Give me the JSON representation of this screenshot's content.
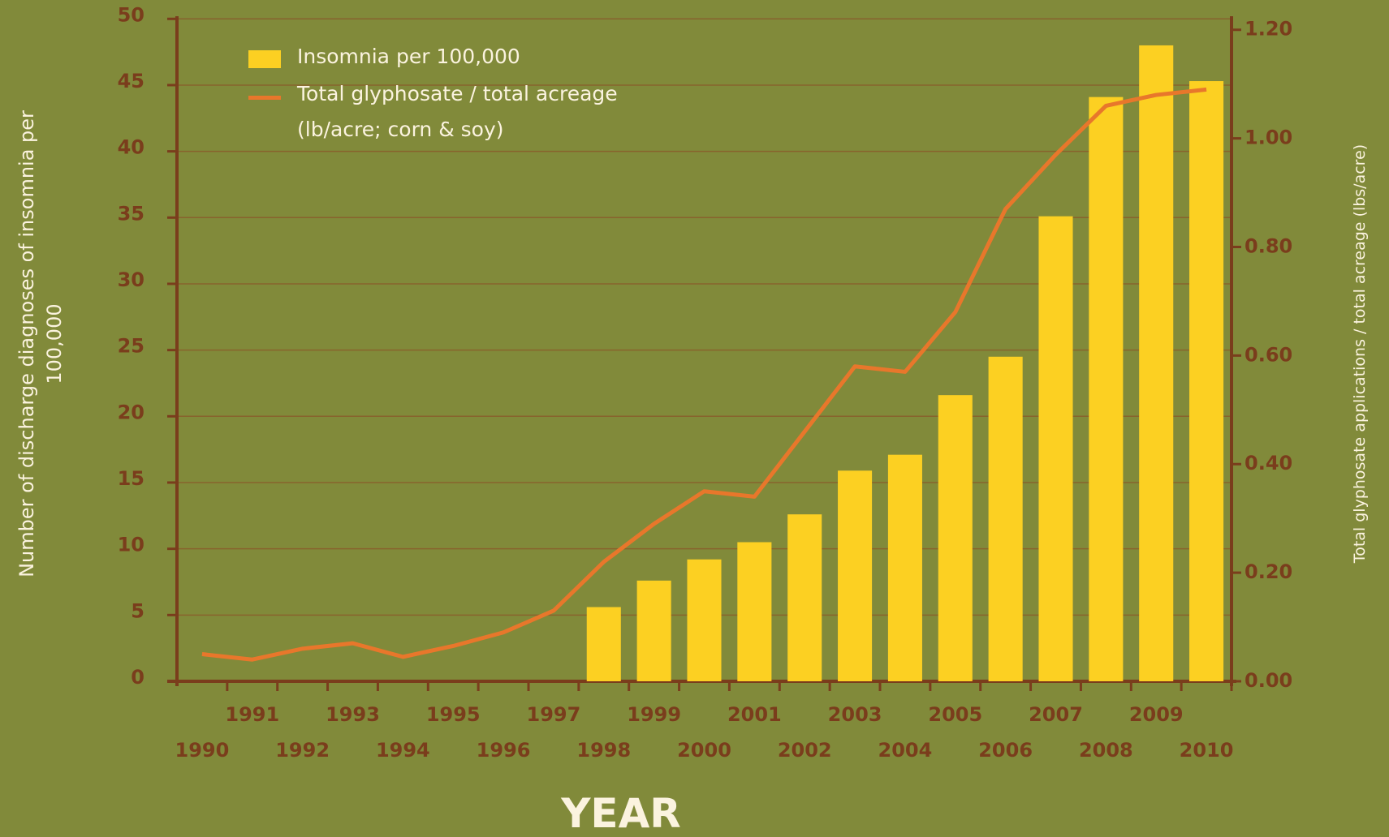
{
  "chart_data": {
    "type": "bar_line",
    "x_label": "YEAR",
    "y_label": "Number of discharge diagnoses of insomnia per 100,000",
    "y2_label": "Total glyphosate applications / total acreage (lbs/acre)",
    "categories": [
      "1990",
      "1991",
      "1992",
      "1993",
      "1994",
      "1995",
      "1996",
      "1997",
      "1998",
      "1999",
      "2000",
      "2001",
      "2002",
      "2003",
      "2004",
      "2005",
      "2006",
      "2007",
      "2008",
      "2009",
      "2010"
    ],
    "series": [
      {
        "name": "Insomnia per 100,000",
        "type": "bar",
        "color": "#fcd022",
        "values": [
          null,
          null,
          null,
          null,
          null,
          null,
          null,
          null,
          5.6,
          7.6,
          9.2,
          10.5,
          12.6,
          15.9,
          17.1,
          21.6,
          24.5,
          35.1,
          44.1,
          48.0,
          45.3
        ]
      },
      {
        "name": "Total glyphosate / total acreage (lb/acre; corn & soy)",
        "type": "line",
        "axis": "y2",
        "color": "#e8772b",
        "values": [
          0.05,
          0.04,
          0.06,
          0.07,
          0.045,
          0.065,
          0.09,
          0.13,
          0.22,
          0.29,
          0.35,
          0.34,
          0.46,
          0.58,
          0.57,
          0.68,
          0.87,
          0.97,
          1.06,
          1.08,
          1.09
        ]
      }
    ],
    "ylim": [
      0,
      50.2
    ],
    "yticks": [
      0,
      5,
      10,
      15,
      20,
      25,
      30,
      35,
      40,
      45,
      50
    ],
    "y2lim": [
      0,
      1.225
    ],
    "y2ticks": [
      {
        "value": 0,
        "label": "0.00"
      },
      {
        "value": 0.2,
        "label": "0.20"
      },
      {
        "value": 0.4,
        "label": "0.40"
      },
      {
        "value": 0.6,
        "label": "0.60"
      },
      {
        "value": 0.8,
        "label": "0.80"
      },
      {
        "value": 1.0,
        "label": "1.00"
      },
      {
        "value": 1.2,
        "label": "1.20"
      }
    ],
    "grid": true
  }
}
